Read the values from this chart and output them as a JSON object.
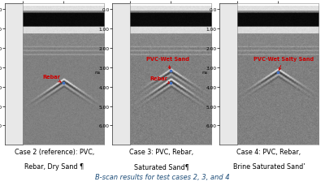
{
  "title": "B-scan results for test cases 2, 3, and 4",
  "title_fontsize": 6.0,
  "title_color": "#1f4e79",
  "background_color": "#ffffff",
  "cases": [
    {
      "caption_line1": "Case 2 (reference): PVC,",
      "caption_line2": "Rebar, Dry Sand ¶",
      "rebar_label": "Rebar",
      "pvc_label": null
    },
    {
      "caption_line1": "Case 3: PVC, Rebar,",
      "caption_line2": "Saturated Sand¶",
      "rebar_label": "Rebar",
      "pvc_label": "PVC-Wet Sand"
    },
    {
      "caption_line1": "Case 4: PVC, Rebar,",
      "caption_line2": "Brine Saturated Sand’",
      "rebar_label": null,
      "pvc_label": "PVC-Wet Salty Sand"
    }
  ],
  "annotation_color": "#cc0000",
  "marker_color": "#4472c4",
  "tick_fontsize": 4.2,
  "caption_fontsize": 5.8,
  "annotation_fontsize": 4.8,
  "label_fontsize": 4.5
}
